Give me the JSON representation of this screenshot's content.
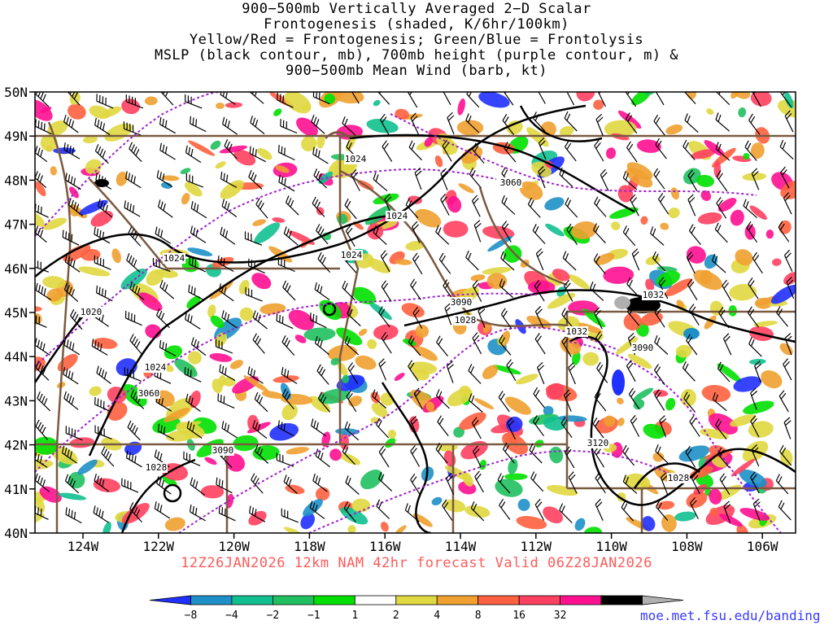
{
  "title_lines": [
    "900−500mb Vertically Averaged 2−D Scalar",
    "Frontogenesis (shaded, K/6hr/100km)",
    "Yellow/Red = Frontogenesis;  Green/Blue = Frontolysis",
    "MSLP (black contour, mb), 700mb height (purple contour, m) &",
    "900−500mb Mean Wind (barb, kt)"
  ],
  "valid_line": "12Z26JAN2026 12km NAM 42hr forecast Valid 06Z28JAN2026",
  "source_url": "moe.met.fsu.edu/banding",
  "lat_labels": [
    "50N",
    "49N",
    "48N",
    "47N",
    "46N",
    "45N",
    "44N",
    "43N",
    "42N",
    "41N",
    "40N"
  ],
  "lon_labels": [
    "124W",
    "122W",
    "120W",
    "118W",
    "116W",
    "114W",
    "112W",
    "110W",
    "108W",
    "106W"
  ],
  "mslp_labels": [
    "1024",
    "1024",
    "1024",
    "1024",
    "1020",
    "1024",
    "1028",
    "1028",
    "1032",
    "1032",
    "1028"
  ],
  "height_labels": [
    "3060",
    "3090",
    "3090",
    "3120",
    "3090",
    "3060"
  ],
  "legend": {
    "ticks": [
      "−8",
      "−4",
      "−2",
      "−1",
      "1",
      "2",
      "4",
      "8",
      "16",
      "32"
    ],
    "colors": [
      "#2030ff",
      "#1e90c8",
      "#10c090",
      "#20c060",
      "#00e000",
      "#ffffff",
      "#e0d840",
      "#f0a030",
      "#ff6040",
      "#ff4060",
      "#ff1090",
      "#000000",
      "#b0b0b0"
    ]
  },
  "colors": {
    "mslp": "#000000",
    "height": "#a020d0",
    "borders": "#7a5a40",
    "valid_text": "#ff5a5a",
    "url_text": "#3a3aff"
  }
}
